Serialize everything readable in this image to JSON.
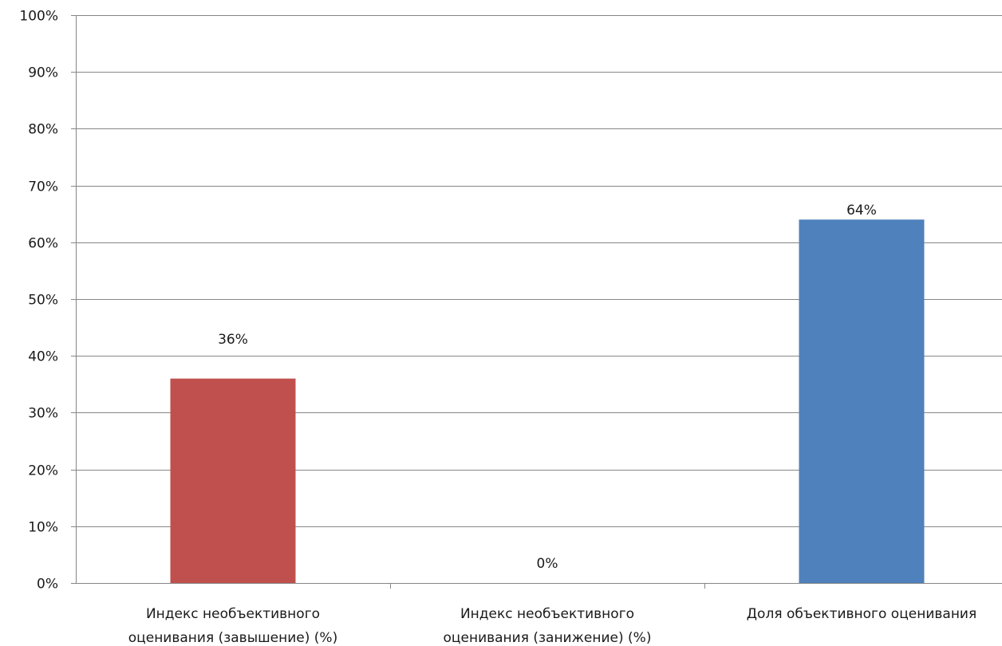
{
  "chart_data": {
    "type": "bar",
    "categories": [
      [
        "Индекс необъективного",
        "оценивания (завышение) (%)"
      ],
      [
        "Индекс необъективного",
        "оценивания (занижение) (%)"
      ],
      [
        "Доля объективного оценивания"
      ]
    ],
    "values": [
      36,
      0,
      64
    ],
    "data_labels": [
      "36%",
      "0%",
      "64%"
    ],
    "colors": [
      "#c0504d",
      "#4f81bd",
      "#4f81bd"
    ],
    "ylim": [
      0,
      100
    ],
    "yticks": [
      0,
      10,
      20,
      30,
      40,
      50,
      60,
      70,
      80,
      90,
      100
    ],
    "ytick_labels": [
      "0%",
      "10%",
      "20%",
      "30%",
      "40%",
      "50%",
      "60%",
      "70%",
      "80%",
      "90%",
      "100%"
    ],
    "grid": true,
    "legend": "none",
    "title": "",
    "xlabel": "",
    "ylabel": ""
  }
}
